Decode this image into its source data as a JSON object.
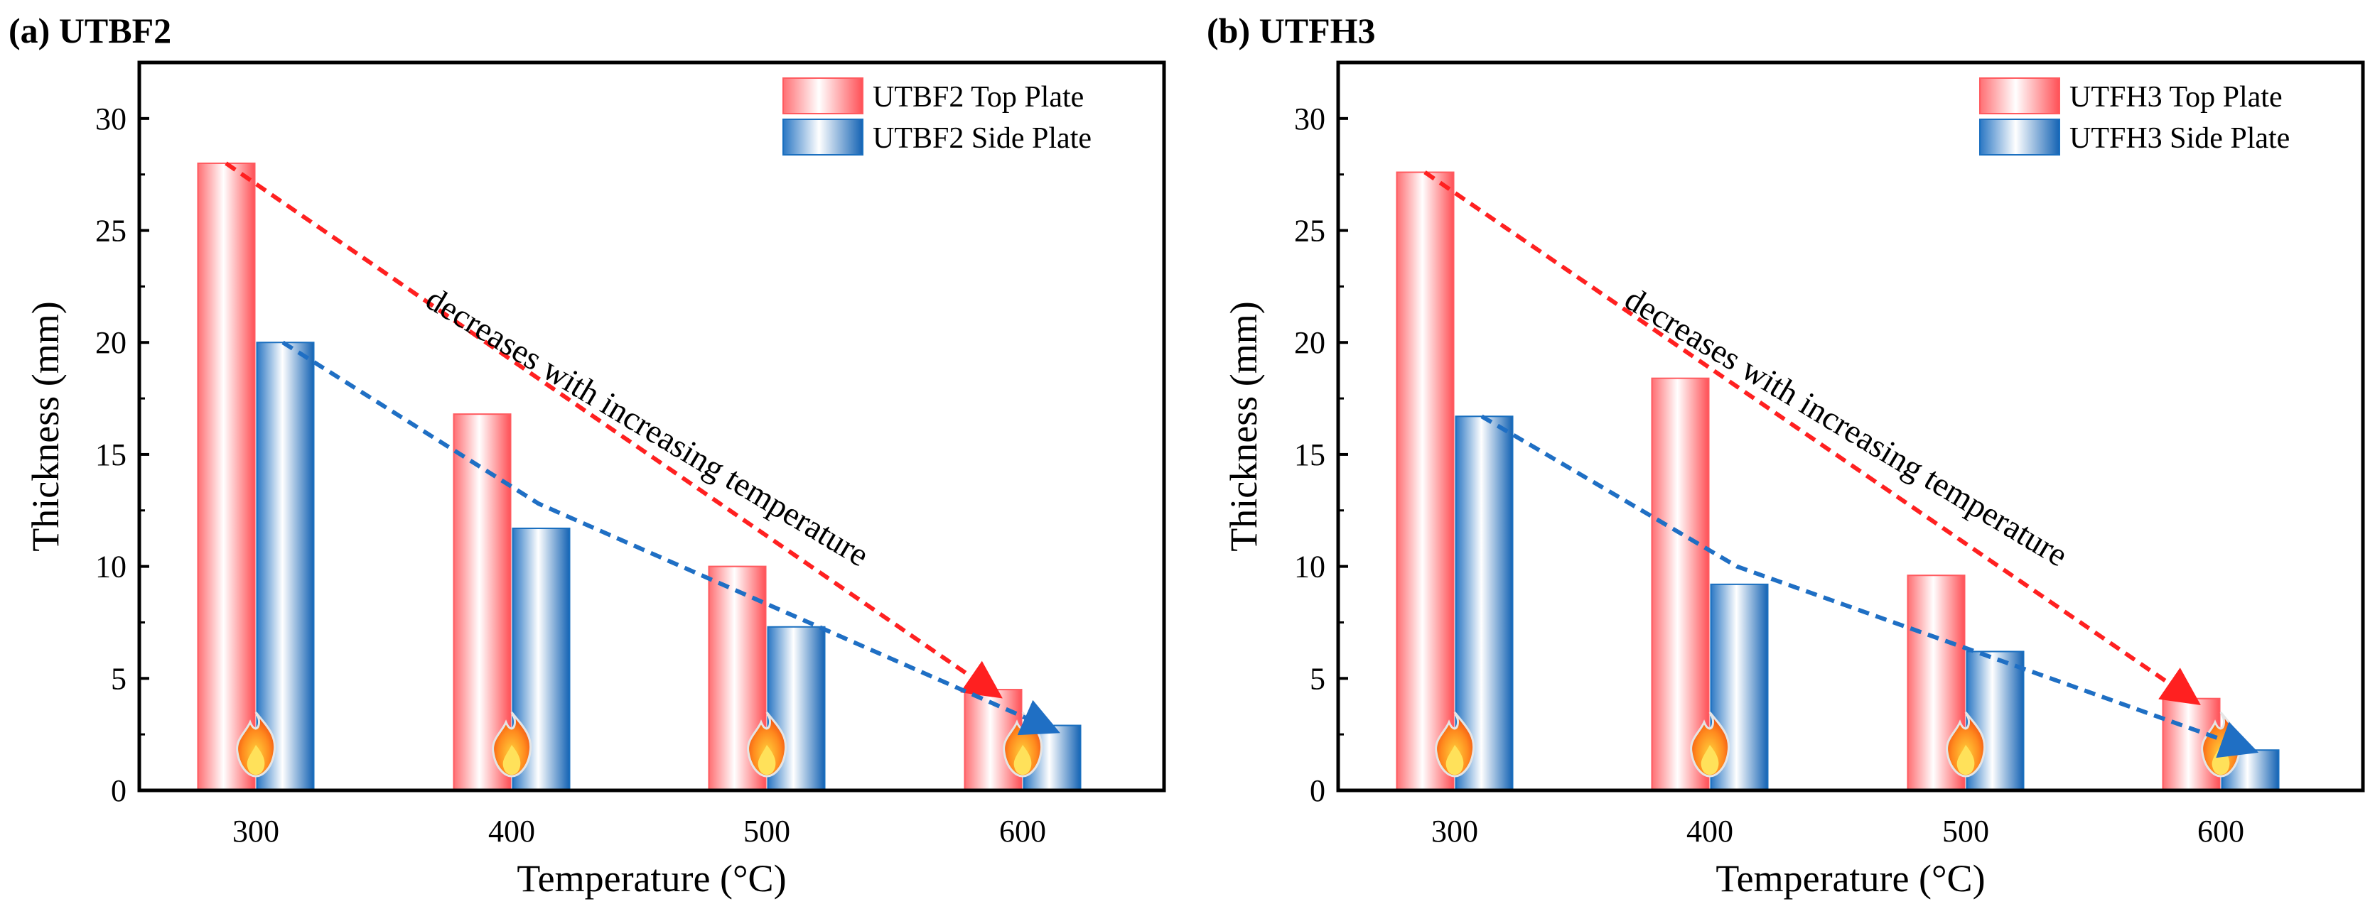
{
  "chart_data": [
    {
      "type": "bar",
      "panel_label": "(a) UTBF2",
      "categories": [
        "300",
        "400",
        "500",
        "600"
      ],
      "series": [
        {
          "name": "UTBF2 Top Plate",
          "values": [
            28.0,
            16.8,
            10.0,
            4.5
          ],
          "color": "#ff5a5f"
        },
        {
          "name": "UTBF2 Side Plate",
          "values": [
            20.0,
            11.7,
            7.3,
            2.9
          ],
          "color": "#1a6fbf"
        }
      ],
      "xlabel": "Temperature (°C)",
      "ylabel": "Thickness (mm)",
      "ylim": [
        0,
        32.5
      ],
      "yticks": [
        0,
        5,
        10,
        15,
        20,
        25,
        30
      ],
      "legend_position": "top-right",
      "annotation": "decreases with increasing temperature",
      "trend_lines": [
        {
          "series": "UTBF2 Top Plate",
          "color": "#ff2020",
          "from": [
            300,
            28.0
          ],
          "to": [
            600,
            4.3
          ]
        },
        {
          "series": "UTBF2 Side Plate",
          "color": "#1f6fc4",
          "from": [
            300,
            20.0
          ],
          "mid": [
            400,
            12.8
          ],
          "to": [
            600,
            2.7
          ]
        }
      ]
    },
    {
      "type": "bar",
      "panel_label": "(b) UTFH3",
      "categories": [
        "300",
        "400",
        "500",
        "600"
      ],
      "series": [
        {
          "name": "UTFH3 Top Plate",
          "values": [
            27.6,
            18.4,
            9.6,
            4.1
          ],
          "color": "#ff5a5f"
        },
        {
          "name": "UTFH3 Side Plate",
          "values": [
            16.7,
            9.2,
            6.2,
            1.8
          ],
          "color": "#1a6fbf"
        }
      ],
      "xlabel": "Temperature (°C)",
      "ylabel": "Thickness (mm)",
      "ylim": [
        0,
        32.5
      ],
      "yticks": [
        0,
        5,
        10,
        15,
        20,
        25,
        30
      ],
      "legend_position": "top-right",
      "annotation": "decreases with increasing temperature",
      "trend_lines": [
        {
          "series": "UTFH3 Top Plate",
          "color": "#ff2020",
          "from": [
            300,
            27.6
          ],
          "to": [
            600,
            4.0
          ]
        },
        {
          "series": "UTFH3 Side Plate",
          "color": "#1f6fc4",
          "from": [
            300,
            16.7
          ],
          "mid": [
            400,
            10.0
          ],
          "to": [
            600,
            1.8
          ]
        }
      ]
    }
  ]
}
